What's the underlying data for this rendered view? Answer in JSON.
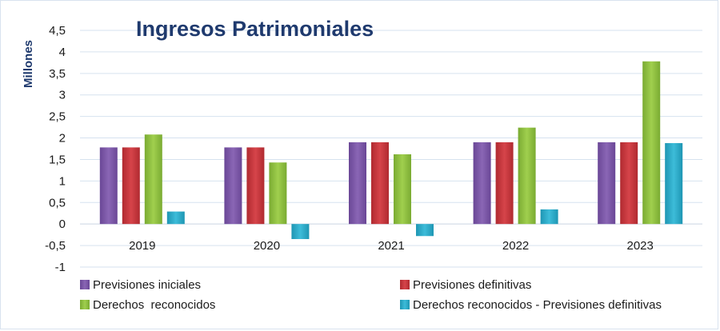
{
  "chart_data": {
    "type": "bar",
    "title": "Ingresos Patrimoniales",
    "ylabel": "Millones",
    "xlabel": "",
    "ylim": [
      -1,
      4.5
    ],
    "yticks": [
      "4,5",
      "4",
      "3,5",
      "3",
      "2,5",
      "2",
      "1,5",
      "1",
      "0,5",
      "0",
      "-0,5",
      "-1"
    ],
    "ytick_values": [
      4.5,
      4,
      3.5,
      3,
      2.5,
      2,
      1.5,
      1,
      0.5,
      0,
      -0.5,
      -1
    ],
    "grid": true,
    "legend_position": "bottom",
    "categories": [
      "2019",
      "2020",
      "2021",
      "2022",
      "2023"
    ],
    "series": [
      {
        "name": "Previsiones iniciales",
        "color": "#7b58a6",
        "values": [
          1.78,
          1.78,
          1.9,
          1.9,
          1.9
        ]
      },
      {
        "name": "Previsiones definitivas",
        "color": "#c8353a",
        "values": [
          1.78,
          1.78,
          1.9,
          1.9,
          1.9
        ]
      },
      {
        "name": "Derechos  reconocidos",
        "color": "#8dbf3f",
        "values": [
          2.08,
          1.43,
          1.62,
          2.24,
          3.78
        ]
      },
      {
        "name": "Derechos reconocidos - Previsiones definitivas",
        "color": "#2aa9c6",
        "values": [
          0.29,
          -0.35,
          -0.28,
          0.34,
          1.88
        ]
      }
    ]
  }
}
